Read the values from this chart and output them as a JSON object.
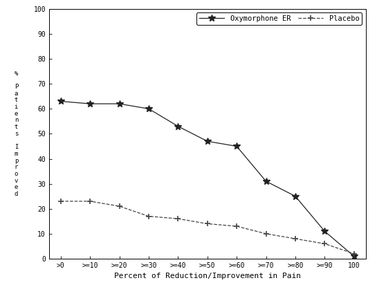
{
  "x_labels": [
    ">0",
    ">=10",
    ">=20",
    ">=30",
    ">=40",
    ">=50",
    ">=60",
    ">=70",
    ">=80",
    ">=90",
    "100"
  ],
  "x_values": [
    0,
    1,
    2,
    3,
    4,
    5,
    6,
    7,
    8,
    9,
    10
  ],
  "oxymorphone": [
    63,
    62,
    62,
    60,
    53,
    47,
    45,
    31,
    25,
    11,
    1
  ],
  "placebo": [
    23,
    23,
    21,
    17,
    16,
    14,
    13,
    10,
    8,
    6,
    2
  ],
  "oxymorphone_color": "#222222",
  "placebo_color": "#444444",
  "background_color": "#ffffff",
  "ylim": [
    0,
    100
  ],
  "ylabel": "% Patients Improved",
  "ylabel_rotated": "% P a t i e n t s   I m p r o v e d",
  "xlabel": "Percent of Reduction/Improvement in Pain",
  "legend_oxymorphone": "Oxymorphone ER",
  "legend_placebo": "Placebo",
  "yticks": [
    0,
    10,
    20,
    30,
    40,
    50,
    60,
    70,
    80,
    90,
    100
  ],
  "axis_fontsize": 8,
  "tick_fontsize": 7,
  "legend_fontsize": 7.5
}
